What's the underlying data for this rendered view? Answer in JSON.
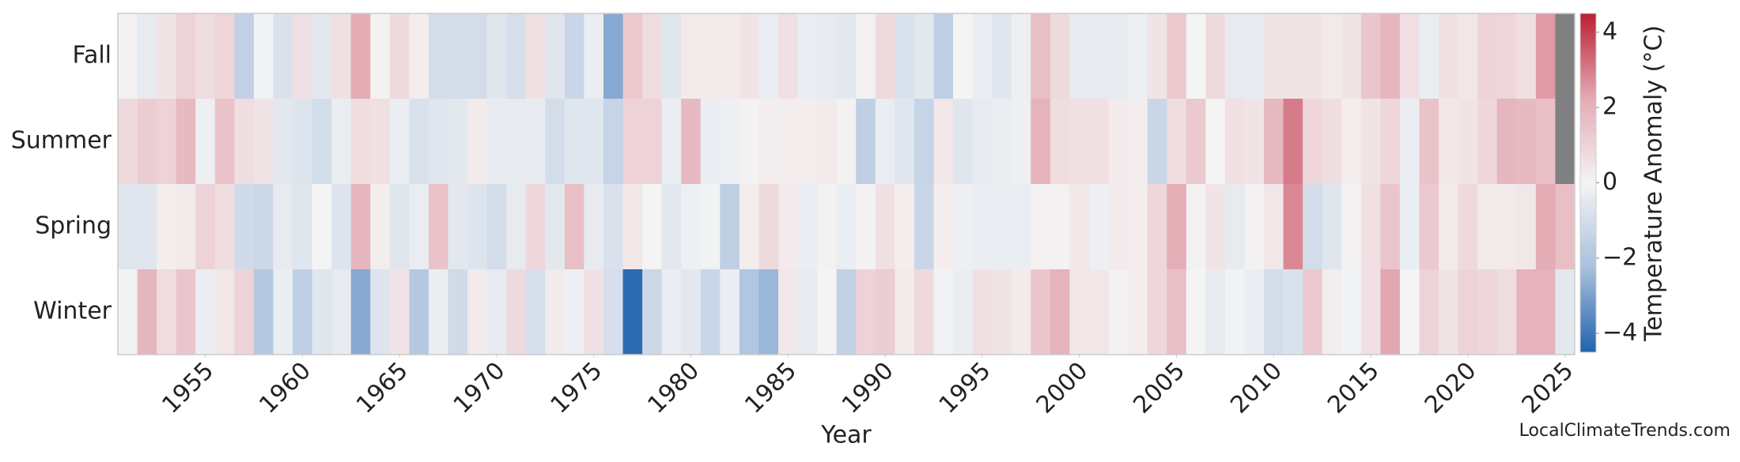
{
  "chart_data": {
    "type": "heatmap",
    "xlabel": "Year",
    "colorbar_label": "Temperature Anomaly (°C)",
    "watermark": "LocalClimateTrends.com",
    "x": [
      1951,
      1952,
      1953,
      1954,
      1955,
      1956,
      1957,
      1958,
      1959,
      1960,
      1961,
      1962,
      1963,
      1964,
      1965,
      1966,
      1967,
      1968,
      1969,
      1970,
      1971,
      1972,
      1973,
      1974,
      1975,
      1976,
      1977,
      1978,
      1979,
      1980,
      1981,
      1982,
      1983,
      1984,
      1985,
      1986,
      1987,
      1988,
      1989,
      1990,
      1991,
      1992,
      1993,
      1994,
      1995,
      1996,
      1997,
      1998,
      1999,
      2000,
      2001,
      2002,
      2003,
      2004,
      2005,
      2006,
      2007,
      2008,
      2009,
      2010,
      2011,
      2012,
      2013,
      2014,
      2015,
      2016,
      2017,
      2018,
      2019,
      2020,
      2021,
      2022,
      2023,
      2024,
      2025
    ],
    "xlim": [
      1950.5,
      2025.5
    ],
    "xticks": [
      1955,
      1960,
      1965,
      1970,
      1975,
      1980,
      1985,
      1990,
      1995,
      2000,
      2005,
      2010,
      2015,
      2020,
      2025
    ],
    "y_categories": [
      "Fall",
      "Summer",
      "Spring",
      "Winter"
    ],
    "z": [
      [
        0.1,
        -0.4,
        0.5,
        1.0,
        0.7,
        0.9,
        -1.5,
        -0.1,
        -0.8,
        0.6,
        -0.5,
        0.6,
        2.2,
        0.1,
        0.8,
        0.2,
        -1.0,
        -1.0,
        -1.0,
        -0.6,
        -0.9,
        0.6,
        -0.6,
        -1.3,
        -0.3,
        -2.8,
        1.3,
        0.7,
        -0.6,
        0.3,
        0.3,
        0.3,
        0.5,
        -0.3,
        0.6,
        -0.3,
        -0.4,
        -0.5,
        0.1,
        0.8,
        -0.8,
        -0.5,
        -1.6,
        0.0,
        -0.3,
        -0.6,
        -0.2,
        1.6,
        0.8,
        -0.4,
        -0.4,
        -0.4,
        -0.2,
        0.5,
        1.3,
        0.0,
        0.8,
        -0.4,
        -0.4,
        0.5,
        0.5,
        0.5,
        0.3,
        0.5,
        1.4,
        1.9,
        0.6,
        -0.3,
        0.6,
        0.4,
        1.0,
        0.9,
        0.6,
        2.5,
        null
      ],
      [
        0.8,
        1.2,
        1.0,
        1.8,
        -0.2,
        1.5,
        0.7,
        0.5,
        -0.5,
        -0.7,
        -1.0,
        -0.3,
        0.7,
        0.6,
        -0.3,
        -0.8,
        -0.6,
        -0.5,
        0.3,
        -0.4,
        -0.4,
        -0.4,
        -1.0,
        -0.6,
        -0.6,
        -1.4,
        1.0,
        1.0,
        -0.3,
        1.8,
        -0.3,
        -0.2,
        0.1,
        0.2,
        0.2,
        0.2,
        0.3,
        0.1,
        -1.6,
        -0.3,
        -0.6,
        -1.4,
        0.4,
        -0.6,
        -0.4,
        -0.3,
        -0.2,
        2.0,
        0.7,
        0.6,
        0.6,
        0.3,
        0.2,
        -1.3,
        0.7,
        1.3,
        0.0,
        0.6,
        0.5,
        1.8,
        3.0,
        0.9,
        0.7,
        0.2,
        0.5,
        0.9,
        -0.3,
        1.5,
        0.4,
        0.5,
        0.9,
        1.9,
        1.8,
        1.6,
        null
      ],
      [
        -0.6,
        -0.6,
        0.2,
        0.3,
        1.0,
        0.7,
        -1.1,
        -1.2,
        -0.4,
        -0.6,
        0.0,
        -0.7,
        1.9,
        0.2,
        -0.6,
        -0.3,
        1.5,
        -0.5,
        -0.7,
        -1.0,
        -0.4,
        0.9,
        -0.5,
        1.6,
        -0.4,
        -0.8,
        0.4,
        0.0,
        -0.5,
        -0.2,
        -0.1,
        -1.6,
        0.2,
        0.8,
        0.3,
        -0.3,
        0.1,
        -0.3,
        0.1,
        0.6,
        0.2,
        -1.3,
        0.2,
        -0.2,
        -0.3,
        -0.3,
        -0.3,
        0.1,
        0.1,
        0.4,
        -0.2,
        0.3,
        0.2,
        0.9,
        2.1,
        0.1,
        0.5,
        -0.4,
        0.1,
        0.4,
        2.8,
        -1.0,
        -0.6,
        0.1,
        0.6,
        1.4,
        -0.3,
        1.3,
        0.3,
        0.8,
        0.3,
        0.3,
        0.4,
        2.2,
        1.6
      ],
      [
        -0.1,
        1.9,
        0.7,
        1.4,
        -0.3,
        0.4,
        1.0,
        -1.9,
        -0.3,
        -1.6,
        -0.6,
        -0.4,
        -2.8,
        -0.7,
        0.5,
        -1.9,
        -0.3,
        -1.1,
        0.3,
        -0.4,
        0.8,
        -0.9,
        0.3,
        -0.2,
        0.6,
        -0.9,
        -4.3,
        -1.2,
        -0.3,
        -0.5,
        -1.3,
        -0.3,
        -2.0,
        -2.5,
        0.4,
        -0.4,
        0.0,
        -1.5,
        1.0,
        1.2,
        0.3,
        0.8,
        -0.1,
        -0.3,
        0.6,
        0.5,
        0.3,
        1.4,
        2.0,
        0.4,
        0.4,
        0.1,
        0.2,
        0.9,
        1.6,
        0.0,
        -0.4,
        -0.1,
        -0.3,
        -1.0,
        -0.8,
        1.3,
        0.2,
        -0.1,
        0.6,
        2.3,
        0.0,
        1.0,
        0.5,
        1.0,
        0.9,
        0.7,
        2.0,
        2.0,
        -0.5
      ]
    ],
    "clim": [
      -4.5,
      4.5
    ],
    "cticks": [
      {
        "value": -4,
        "label": "−4"
      },
      {
        "value": -2,
        "label": "−2"
      },
      0,
      2,
      4
    ],
    "colormap": [
      "#1f63ac",
      "#a9c0dd",
      "#f4f4f4",
      "#e4aab4",
      "#bb1e33"
    ],
    "missing_color": "#808080"
  }
}
